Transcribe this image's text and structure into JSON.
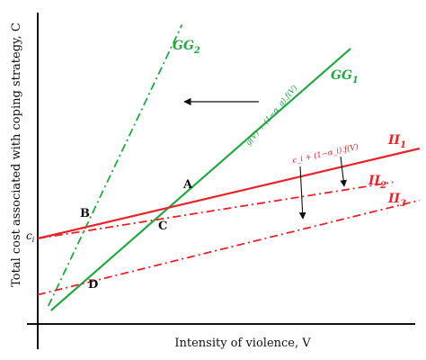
{
  "chart_data": {
    "type": "line",
    "title": "",
    "xlabel": "Intensity of violence, V",
    "ylabel": "Total cost associated with coping strategy, C",
    "y_intercept_label": "c",
    "y_intercept_sub": "i",
    "grid": false,
    "legend": "none",
    "colors": {
      "green": "#22a845",
      "red": "#e8232a",
      "black": "#111111"
    },
    "series": [
      {
        "name": "GG",
        "sub": "1",
        "color": "#22a845",
        "style": "solid",
        "x": [
          0.25,
          5.9
        ],
        "y": [
          0.3,
          6.12
        ],
        "formula": "g(V) + (1−α_g).f(V)"
      },
      {
        "name": "GG",
        "sub": "2",
        "color": "#22a845",
        "style": "dashdot",
        "x": [
          0.2,
          2.72
        ],
        "y": [
          0.4,
          6.65
        ]
      },
      {
        "name": "II",
        "sub": "1",
        "color": "#e8232a",
        "style": "solid",
        "x": [
          0.0,
          7.2
        ],
        "y": [
          1.9,
          3.9
        ],
        "formula": "c_i + (1−α_i).f(V)"
      },
      {
        "name": "II",
        "sub": "2",
        "color": "#e8232a",
        "style": "dashdot",
        "x": [
          0.0,
          6.7
        ],
        "y": [
          1.9,
          3.15
        ]
      },
      {
        "name": "II",
        "sub": "3",
        "color": "#e8232a",
        "style": "dashdot",
        "x": [
          0.0,
          7.2
        ],
        "y": [
          0.65,
          2.75
        ]
      }
    ],
    "points": [
      {
        "label": "A",
        "x": 2.7,
        "y": 2.65
      },
      {
        "label": "B",
        "x": 0.87,
        "y": 2.13
      },
      {
        "label": "C",
        "x": 2.23,
        "y": 2.32
      },
      {
        "label": "D",
        "x": 0.85,
        "y": 0.91
      }
    ]
  }
}
